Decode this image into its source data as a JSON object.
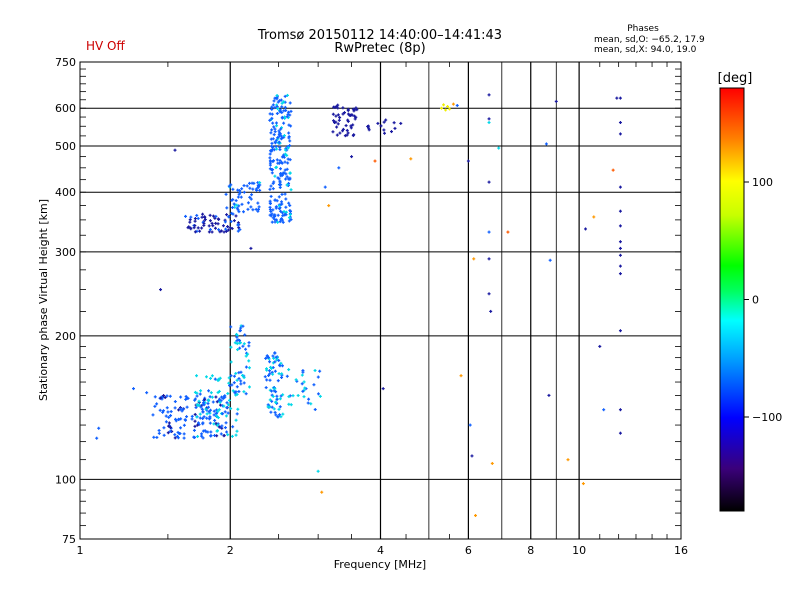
{
  "header": {
    "hv_status": "HV Off",
    "title_line1": "Tromsø 20150112 14:40:00–14:41:43",
    "title_line2": "RwPretec (8p)",
    "stats_heading": "Phases",
    "stats_line1": "mean, sd,O: −65.2, 17.9",
    "stats_line2": "mean, sd,X:  94.0, 19.0"
  },
  "colorbar": {
    "label": "[deg]",
    "range": [
      -180,
      180
    ],
    "ticks": [
      {
        "label": "100",
        "value": 100
      },
      {
        "label": "0",
        "value": 0
      },
      {
        "label": "−100",
        "value": -100
      }
    ]
  },
  "colors": {
    "hv_off": "#cc0000",
    "cyan": "#00d8e8",
    "blue": "#1060ff",
    "navy": "#1a1aa0",
    "orange": "#ff9900",
    "yellow": "#f0f000",
    "grid": "#000000"
  },
  "chart_data": {
    "type": "scatter",
    "title": "Tromsø 20150112 14:40:00–14:41:43",
    "subtitle": "RwPretec (8p)",
    "xlabel": "Frequency [MHz]",
    "ylabel": "Stationary phase Virtual Height [km]",
    "x_scale": "log",
    "y_scale": "log",
    "xlim": [
      1,
      16
    ],
    "ylim": [
      75,
      750
    ],
    "x_ticks": [
      {
        "label": "1",
        "value": 1
      },
      {
        "label": "2",
        "value": 2
      },
      {
        "label": "4",
        "value": 4
      },
      {
        "label": "6",
        "value": 6
      },
      {
        "label": "8",
        "value": 8
      },
      {
        "label": "10",
        "value": 10
      },
      {
        "label": "16",
        "value": 16
      }
    ],
    "y_ticks": [
      {
        "label": "75",
        "value": 75
      },
      {
        "label": "100",
        "value": 100
      },
      {
        "label": "200",
        "value": 200
      },
      {
        "label": "300",
        "value": 300
      },
      {
        "label": "400",
        "value": 400
      },
      {
        "label": "500",
        "value": 500
      },
      {
        "label": "600",
        "value": 600
      },
      {
        "label": "750",
        "value": 750
      }
    ],
    "major_x_grid": [
      2,
      4,
      6,
      8,
      10
    ],
    "minor_x_grid": [
      5,
      7,
      9
    ],
    "major_y_grid": [
      100,
      200,
      300,
      400,
      500,
      600
    ],
    "clusters": [
      {
        "f": [
          1.4,
          2.0
        ],
        "h": [
          122,
          150
        ],
        "n": 160,
        "phase": [
          -105,
          -75
        ]
      },
      {
        "f": [
          1.7,
          2.08
        ],
        "h": [
          122,
          165
        ],
        "n": 70,
        "phase": [
          -75,
          -60
        ]
      },
      {
        "f": [
          2.0,
          2.2
        ],
        "h": [
          150,
          210
        ],
        "n": 55,
        "phase": [
          -80,
          -65
        ]
      },
      {
        "f": [
          2.35,
          2.55
        ],
        "h": [
          135,
          185
        ],
        "n": 80,
        "phase": [
          -85,
          -65
        ]
      },
      {
        "f": [
          2.6,
          3.05
        ],
        "h": [
          140,
          170
        ],
        "n": 30,
        "phase": [
          -78,
          -65
        ]
      },
      {
        "f": [
          1.62,
          2.1
        ],
        "h": [
          330,
          360
        ],
        "n": 70,
        "phase": [
          -110,
          -95
        ]
      },
      {
        "f": [
          1.95,
          2.3
        ],
        "h": [
          355,
          420
        ],
        "n": 60,
        "phase": [
          -95,
          -70
        ]
      },
      {
        "f": [
          2.4,
          2.65
        ],
        "h": [
          345,
          470
        ],
        "n": 120,
        "phase": [
          -95,
          -70
        ]
      },
      {
        "f": [
          2.4,
          2.65
        ],
        "h": [
          470,
          640
        ],
        "n": 110,
        "phase": [
          -85,
          -68
        ]
      },
      {
        "f": [
          3.2,
          3.6
        ],
        "h": [
          525,
          610
        ],
        "n": 50,
        "phase": [
          -125,
          -105
        ]
      },
      {
        "f": [
          3.75,
          4.4
        ],
        "h": [
          530,
          570
        ],
        "n": 14,
        "phase": [
          -120,
          -100
        ]
      }
    ],
    "points": [
      {
        "f": 1.08,
        "h": 122,
        "phase": -75
      },
      {
        "f": 1.09,
        "h": 128,
        "phase": -75
      },
      {
        "f": 1.28,
        "h": 155,
        "phase": -85
      },
      {
        "f": 1.36,
        "h": 152,
        "phase": -80
      },
      {
        "f": 1.45,
        "h": 250,
        "phase": -120
      },
      {
        "f": 1.55,
        "h": 490,
        "phase": -130
      },
      {
        "f": 2.2,
        "h": 305,
        "phase": -125
      },
      {
        "f": 3.0,
        "h": 104,
        "phase": -72
      },
      {
        "f": 3.05,
        "h": 94,
        "phase": 120
      },
      {
        "f": 3.1,
        "h": 410,
        "phase": -100
      },
      {
        "f": 3.15,
        "h": 375,
        "phase": 130
      },
      {
        "f": 3.3,
        "h": 450,
        "phase": -90
      },
      {
        "f": 3.5,
        "h": 475,
        "phase": -110
      },
      {
        "f": 3.9,
        "h": 465,
        "phase": 150
      },
      {
        "f": 4.05,
        "h": 155,
        "phase": -125
      },
      {
        "f": 4.6,
        "h": 470,
        "phase": 120
      },
      {
        "f": 5.3,
        "h": 600,
        "phase": 95
      },
      {
        "f": 5.35,
        "h": 610,
        "phase": 95
      },
      {
        "f": 5.4,
        "h": 595,
        "phase": 95
      },
      {
        "f": 5.45,
        "h": 605,
        "phase": 95
      },
      {
        "f": 5.5,
        "h": 598,
        "phase": 95
      },
      {
        "f": 5.6,
        "h": 612,
        "phase": 130
      },
      {
        "f": 5.7,
        "h": 608,
        "phase": -80
      },
      {
        "f": 5.8,
        "h": 165,
        "phase": 140
      },
      {
        "f": 6.0,
        "h": 465,
        "phase": -120
      },
      {
        "f": 6.05,
        "h": 130,
        "phase": -80
      },
      {
        "f": 6.1,
        "h": 112,
        "phase": -110
      },
      {
        "f": 6.15,
        "h": 290,
        "phase": 130
      },
      {
        "f": 6.2,
        "h": 84,
        "phase": 140
      },
      {
        "f": 6.6,
        "h": 640,
        "phase": -110
      },
      {
        "f": 6.6,
        "h": 570,
        "phase": -105
      },
      {
        "f": 6.6,
        "h": 560,
        "phase": -60
      },
      {
        "f": 6.6,
        "h": 420,
        "phase": -110
      },
      {
        "f": 6.6,
        "h": 330,
        "phase": -85
      },
      {
        "f": 6.6,
        "h": 290,
        "phase": -110
      },
      {
        "f": 6.6,
        "h": 245,
        "phase": -110
      },
      {
        "f": 6.65,
        "h": 225,
        "phase": -115
      },
      {
        "f": 6.7,
        "h": 108,
        "phase": 130
      },
      {
        "f": 6.9,
        "h": 495,
        "phase": -70
      },
      {
        "f": 7.2,
        "h": 330,
        "phase": 150
      },
      {
        "f": 8.6,
        "h": 505,
        "phase": -85
      },
      {
        "f": 8.7,
        "h": 150,
        "phase": -115
      },
      {
        "f": 8.75,
        "h": 288,
        "phase": -75
      },
      {
        "f": 9.0,
        "h": 620,
        "phase": -125
      },
      {
        "f": 9.5,
        "h": 110,
        "phase": 140
      },
      {
        "f": 10.2,
        "h": 98,
        "phase": 140
      },
      {
        "f": 10.3,
        "h": 335,
        "phase": -105
      },
      {
        "f": 10.7,
        "h": 355,
        "phase": 130
      },
      {
        "f": 11.0,
        "h": 190,
        "phase": -125
      },
      {
        "f": 11.2,
        "h": 140,
        "phase": -90
      },
      {
        "f": 11.7,
        "h": 445,
        "phase": 150
      },
      {
        "f": 11.9,
        "h": 630,
        "phase": -125
      },
      {
        "f": 12.1,
        "h": 630,
        "phase": -130
      },
      {
        "f": 12.1,
        "h": 560,
        "phase": -120
      },
      {
        "f": 12.1,
        "h": 530,
        "phase": -125
      },
      {
        "f": 12.1,
        "h": 410,
        "phase": -115
      },
      {
        "f": 12.1,
        "h": 365,
        "phase": -125
      },
      {
        "f": 12.1,
        "h": 340,
        "phase": -125
      },
      {
        "f": 12.1,
        "h": 315,
        "phase": -130
      },
      {
        "f": 12.1,
        "h": 305,
        "phase": -125
      },
      {
        "f": 12.1,
        "h": 295,
        "phase": -125
      },
      {
        "f": 12.1,
        "h": 280,
        "phase": -115
      },
      {
        "f": 12.1,
        "h": 270,
        "phase": -120
      },
      {
        "f": 12.1,
        "h": 205,
        "phase": -110
      },
      {
        "f": 12.1,
        "h": 140,
        "phase": -120
      },
      {
        "f": 12.1,
        "h": 125,
        "phase": -125
      }
    ]
  }
}
